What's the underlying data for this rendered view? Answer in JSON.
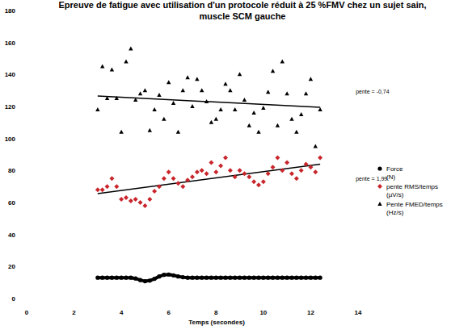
{
  "chart_data": {
    "type": "scatter",
    "title": "Epreuve de fatigue avec utilisation d'un protocole réduit à 25 %FMV chez un sujet sain,",
    "subtitle": "muscle SCM gauche",
    "x_label": "Temps (secondes)",
    "xlim": [
      0,
      14
    ],
    "xticks": [
      0,
      2,
      4,
      6,
      8,
      10,
      12,
      14
    ],
    "ylim": [
      0,
      180
    ],
    "yticks": [
      0,
      20,
      40,
      60,
      80,
      100,
      120,
      140,
      160,
      180
    ],
    "grid": false,
    "legend": "right",
    "x": [
      3,
      3.2,
      3.4,
      3.6,
      3.8,
      4,
      4.2,
      4.4,
      4.6,
      4.8,
      5,
      5.2,
      5.4,
      5.6,
      5.8,
      6,
      6.2,
      6.4,
      6.6,
      6.8,
      7,
      7.2,
      7.4,
      7.6,
      7.8,
      8,
      8.2,
      8.4,
      8.6,
      8.8,
      9,
      9.2,
      9.4,
      9.6,
      9.8,
      10,
      10.2,
      10.4,
      10.6,
      10.8,
      11,
      11.2,
      11.4,
      11.6,
      11.8,
      12,
      12.2,
      12.4
    ],
    "series": [
      {
        "name": "Force (N)",
        "color": "#000000",
        "marker": "circle",
        "line_style": "solid",
        "values": [
          13,
          13,
          13,
          13,
          13,
          13,
          13,
          13,
          12.5,
          11.5,
          10.8,
          11.2,
          12.3,
          13.8,
          14.8,
          15,
          14.5,
          13.8,
          13.3,
          13,
          13,
          13,
          13,
          13,
          13,
          13,
          13,
          13,
          13,
          13,
          13,
          13,
          13,
          13,
          13,
          13,
          13,
          13,
          13,
          13,
          13,
          13,
          13,
          13,
          13,
          13,
          13,
          13
        ]
      },
      {
        "name": "pente RMS/temps (µV/s)",
        "color": "#c8262c",
        "marker": "diamond",
        "values": [
          68,
          68,
          70,
          75,
          70,
          62,
          63,
          61,
          62,
          60,
          58,
          62,
          67,
          70,
          75,
          79,
          75,
          72,
          70,
          74,
          76,
          79,
          80,
          78,
          85,
          79,
          83,
          88,
          80,
          76,
          80,
          78,
          76,
          73,
          71,
          73,
          78,
          82,
          88,
          80,
          85,
          78,
          75,
          80,
          84,
          82,
          79,
          88
        ]
      },
      {
        "name": "Pente FMED/temps (Hz/s)",
        "color": "#000000",
        "marker": "triangle",
        "values": [
          118,
          145,
          125,
          143,
          125,
          104,
          148,
          156,
          124,
          128,
          130,
          105,
          118,
          127,
          112,
          135,
          122,
          104,
          130,
          138,
          120,
          137,
          130,
          123,
          110,
          112,
          118,
          134,
          130,
          118,
          140,
          124,
          108,
          116,
          104,
          119,
          129,
          142,
          108,
          148,
          128,
          112,
          104,
          115,
          128,
          137,
          95,
          118
        ]
      }
    ],
    "trendlines": [
      {
        "x": [
          3,
          12.4
        ],
        "values": [
          126.5,
          119.5
        ],
        "color": "#000000",
        "label": "pente = -0,74"
      },
      {
        "x": [
          3,
          12.4
        ],
        "values": [
          65.5,
          84
        ],
        "color": "#000000",
        "label": "pente = 1,99"
      }
    ]
  }
}
